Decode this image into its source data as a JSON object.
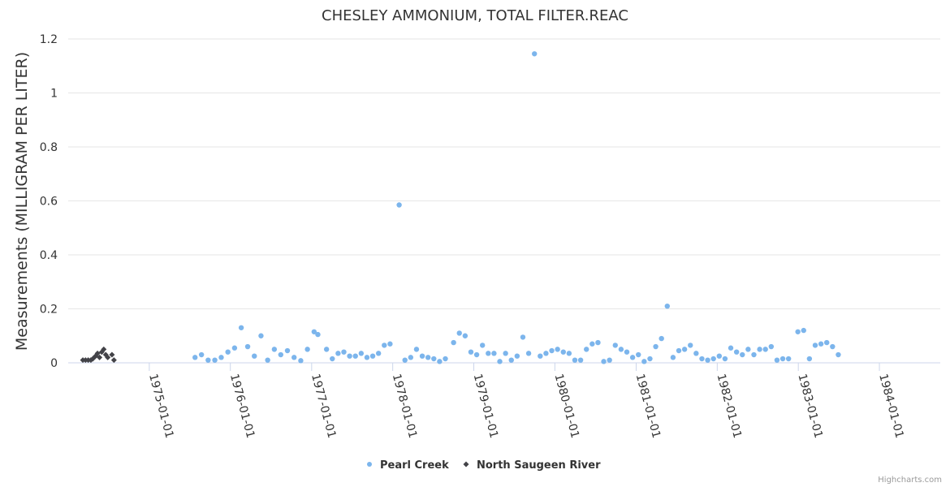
{
  "chart_data": {
    "type": "scatter",
    "title": "CHESLEY AMMONIUM, TOTAL FILTER.REAC",
    "ylabel": "Measurements (MILLIGRAM PER LITER)",
    "xlabel": "",
    "ylim": [
      0,
      1.2
    ],
    "y_ticks": [
      "0",
      "0.2",
      "0.4",
      "0.6",
      "0.8",
      "1",
      "1.2"
    ],
    "x_ticks": [
      "1975-01-01",
      "1976-01-01",
      "1977-01-01",
      "1978-01-01",
      "1979-01-01",
      "1980-01-01",
      "1981-01-01",
      "1982-01-01",
      "1983-01-01",
      "1984-01-01"
    ],
    "xlim": [
      "1974-01-01",
      "1984-10-01"
    ],
    "grid": "horizontal",
    "legend": "bottom-center",
    "series": [
      {
        "name": "Pearl Creek",
        "color": "#7cb5ec",
        "marker": "circle",
        "points": [
          [
            "1975-07-26",
            0.02
          ],
          [
            "1975-08-24",
            0.03
          ],
          [
            "1975-09-23",
            0.01
          ],
          [
            "1975-10-23",
            0.01
          ],
          [
            "1975-11-21",
            0.02
          ],
          [
            "1975-12-21",
            0.04
          ],
          [
            "1976-01-20",
            0.055
          ],
          [
            "1976-02-19",
            0.13
          ],
          [
            "1976-03-19",
            0.06
          ],
          [
            "1976-04-18",
            0.025
          ],
          [
            "1976-05-18",
            0.1
          ],
          [
            "1976-06-17",
            0.01
          ],
          [
            "1976-07-17",
            0.05
          ],
          [
            "1976-08-15",
            0.03
          ],
          [
            "1976-09-14",
            0.045
          ],
          [
            "1976-10-14",
            0.02
          ],
          [
            "1976-11-13",
            0.008
          ],
          [
            "1976-12-13",
            0.05
          ],
          [
            "1977-01-12",
            0.115
          ],
          [
            "1977-01-29",
            0.105
          ],
          [
            "1977-03-09",
            0.05
          ],
          [
            "1977-04-04",
            0.015
          ],
          [
            "1977-04-30",
            0.035
          ],
          [
            "1977-05-26",
            0.04
          ],
          [
            "1977-06-21",
            0.025
          ],
          [
            "1977-07-17",
            0.025
          ],
          [
            "1977-08-12",
            0.035
          ],
          [
            "1977-09-07",
            0.02
          ],
          [
            "1977-10-03",
            0.025
          ],
          [
            "1977-10-29",
            0.035
          ],
          [
            "1977-11-24",
            0.065
          ],
          [
            "1977-12-20",
            0.07
          ],
          [
            "1978-01-30",
            0.585
          ],
          [
            "1978-02-25",
            0.01
          ],
          [
            "1978-03-23",
            0.02
          ],
          [
            "1978-04-18",
            0.05
          ],
          [
            "1978-05-14",
            0.025
          ],
          [
            "1978-06-09",
            0.02
          ],
          [
            "1978-07-05",
            0.015
          ],
          [
            "1978-07-31",
            0.005
          ],
          [
            "1978-08-26",
            0.015
          ],
          [
            "1978-10-02",
            0.075
          ],
          [
            "1978-10-28",
            0.11
          ],
          [
            "1978-11-23",
            0.1
          ],
          [
            "1978-12-19",
            0.04
          ],
          [
            "1979-01-14",
            0.03
          ],
          [
            "1979-02-09",
            0.065
          ],
          [
            "1979-03-07",
            0.035
          ],
          [
            "1979-04-02",
            0.035
          ],
          [
            "1979-04-28",
            0.005
          ],
          [
            "1979-05-24",
            0.035
          ],
          [
            "1979-06-19",
            0.01
          ],
          [
            "1979-07-15",
            0.025
          ],
          [
            "1979-08-10",
            0.095
          ],
          [
            "1979-09-05",
            0.035
          ],
          [
            "1979-10-01",
            1.145
          ],
          [
            "1979-10-27",
            0.025
          ],
          [
            "1979-11-22",
            0.035
          ],
          [
            "1979-12-18",
            0.045
          ],
          [
            "1980-01-13",
            0.05
          ],
          [
            "1980-02-08",
            0.04
          ],
          [
            "1980-03-05",
            0.035
          ],
          [
            "1980-03-31",
            0.01
          ],
          [
            "1980-04-26",
            0.01
          ],
          [
            "1980-05-22",
            0.05
          ],
          [
            "1980-06-17",
            0.07
          ],
          [
            "1980-07-13",
            0.075
          ],
          [
            "1980-08-08",
            0.005
          ],
          [
            "1980-09-03",
            0.01
          ],
          [
            "1980-09-29",
            0.065
          ],
          [
            "1980-10-25",
            0.05
          ],
          [
            "1980-11-20",
            0.04
          ],
          [
            "1980-12-16",
            0.02
          ],
          [
            "1981-01-11",
            0.03
          ],
          [
            "1981-02-06",
            0.005
          ],
          [
            "1981-03-04",
            0.015
          ],
          [
            "1981-03-30",
            0.06
          ],
          [
            "1981-04-25",
            0.09
          ],
          [
            "1981-05-21",
            0.21
          ],
          [
            "1981-06-16",
            0.02
          ],
          [
            "1981-07-12",
            0.045
          ],
          [
            "1981-08-07",
            0.05
          ],
          [
            "1981-09-02",
            0.065
          ],
          [
            "1981-09-28",
            0.035
          ],
          [
            "1981-10-24",
            0.015
          ],
          [
            "1981-11-19",
            0.01
          ],
          [
            "1981-12-15",
            0.015
          ],
          [
            "1982-01-10",
            0.025
          ],
          [
            "1982-02-05",
            0.015
          ],
          [
            "1982-03-03",
            0.055
          ],
          [
            "1982-03-29",
            0.04
          ],
          [
            "1982-04-24",
            0.03
          ],
          [
            "1982-05-20",
            0.05
          ],
          [
            "1982-06-15",
            0.03
          ],
          [
            "1982-07-11",
            0.05
          ],
          [
            "1982-08-06",
            0.05
          ],
          [
            "1982-09-01",
            0.06
          ],
          [
            "1982-09-27",
            0.01
          ],
          [
            "1982-10-23",
            0.015
          ],
          [
            "1982-11-18",
            0.015
          ],
          [
            "1982-12-30",
            0.115
          ],
          [
            "1983-01-25",
            0.12
          ],
          [
            "1983-02-20",
            0.015
          ],
          [
            "1983-03-18",
            0.065
          ],
          [
            "1983-04-13",
            0.07
          ],
          [
            "1983-05-09",
            0.075
          ],
          [
            "1983-06-04",
            0.06
          ],
          [
            "1983-06-30",
            0.03
          ]
        ]
      },
      {
        "name": "North Saugeen River",
        "color": "#434348",
        "marker": "diamond",
        "points": [
          [
            "1974-03-08",
            0.01
          ],
          [
            "1974-03-20",
            0.01
          ],
          [
            "1974-04-01",
            0.01
          ],
          [
            "1974-04-13",
            0.01
          ],
          [
            "1974-04-22",
            0.015
          ],
          [
            "1974-05-04",
            0.025
          ],
          [
            "1974-05-13",
            0.035
          ],
          [
            "1974-05-22",
            0.02
          ],
          [
            "1974-06-01",
            0.04
          ],
          [
            "1974-06-10",
            0.05
          ],
          [
            "1974-06-19",
            0.03
          ],
          [
            "1974-06-28",
            0.02
          ],
          [
            "1974-07-17",
            0.03
          ],
          [
            "1974-07-26",
            0.01
          ]
        ]
      }
    ]
  },
  "credits": "Highcharts.com"
}
